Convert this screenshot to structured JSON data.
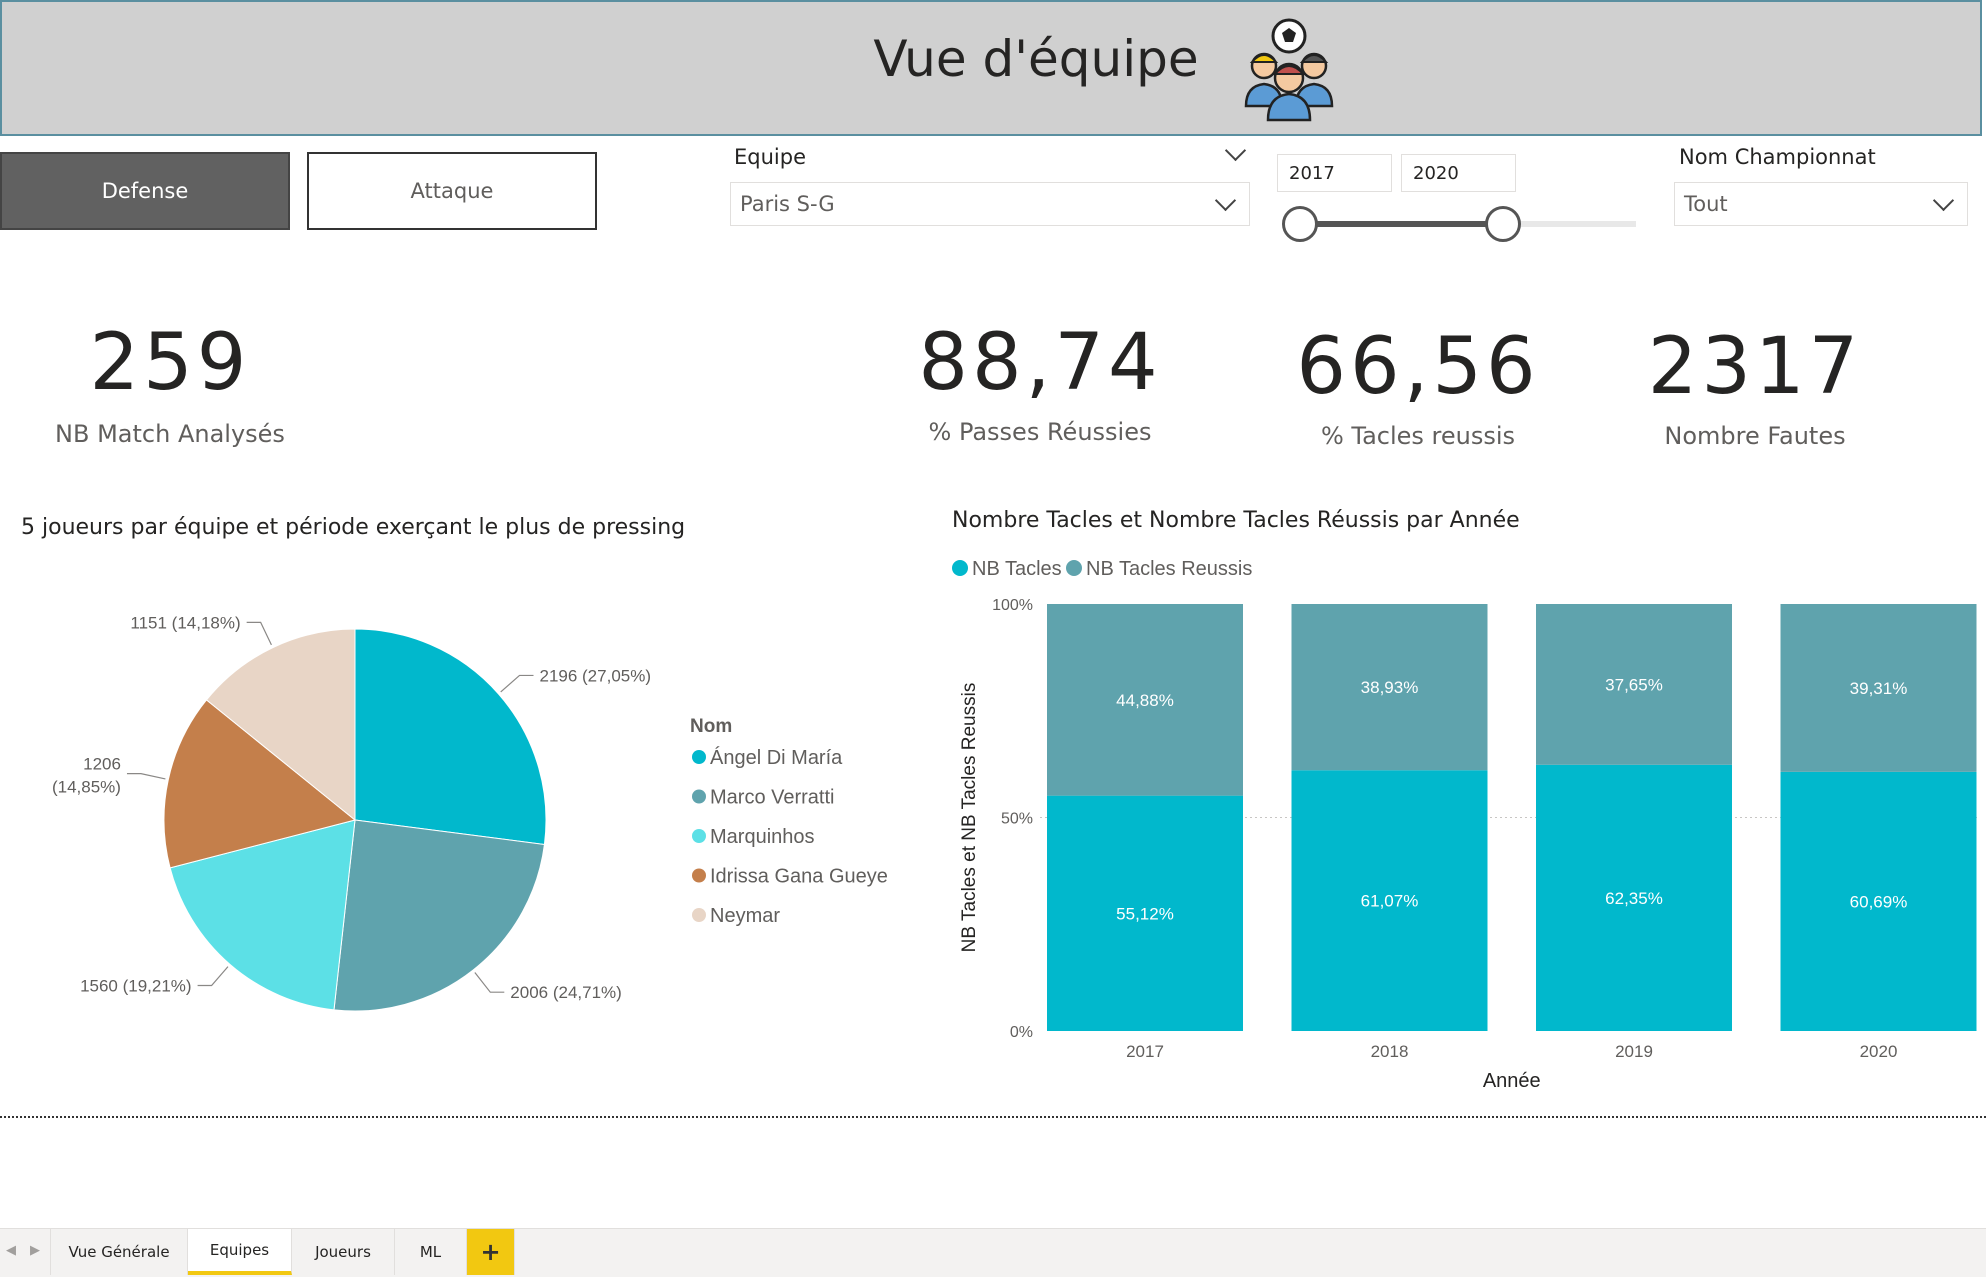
{
  "header": {
    "title": "Vue d'équipe",
    "icon": "team-players-icon"
  },
  "buttons": {
    "defense": "Defense",
    "attaque": "Attaque"
  },
  "slicers": {
    "equipe": {
      "label": "Equipe",
      "value": "Paris S-G"
    },
    "years": {
      "start": "2017",
      "end": "2020"
    },
    "championnat": {
      "label": "Nom Championnat",
      "value": "Tout"
    }
  },
  "kpis": {
    "matches": {
      "value": "259",
      "label": "NB Match Analysés"
    },
    "passes": {
      "value": "88,74",
      "label": "% Passes Réussies"
    },
    "tacles": {
      "value": "66,56",
      "label": "% Tacles reussis"
    },
    "fautes": {
      "value": "2317",
      "label": "Nombre Fautes"
    }
  },
  "chart_data": [
    {
      "type": "pie",
      "title": "5 joueurs par équipe et période exerçant le plus de pressing",
      "legend_title": "Nom",
      "legend_position": "right",
      "slices": [
        {
          "name": "Ángel Di María",
          "value": 2196,
          "label": "2196 (27,05%)",
          "color": "#01b8cc"
        },
        {
          "name": "Marco Verratti",
          "value": 2006,
          "label": "2006 (24,71%)",
          "color": "#5fa3ad"
        },
        {
          "name": "Marquinhos",
          "value": 1560,
          "label": "1560 (19,21%)",
          "color": "#5ce0e6"
        },
        {
          "name": "Idrissa Gana Gueye",
          "value": 1206,
          "label": "1206 (14,85%)",
          "color": "#c47f4b"
        },
        {
          "name": "Neymar",
          "value": 1151,
          "label": "1151 (14,18%)",
          "color": "#e8d5c6"
        }
      ]
    },
    {
      "type": "bar",
      "stacked": "100%",
      "title": "Nombre Tacles et Nombre Tacles Réussis par Année",
      "xlabel": "Année",
      "ylabel": "NB Tacles et NB Tacles Reussis",
      "yticks": [
        "0%",
        "50%",
        "100%"
      ],
      "legend_position": "top-left",
      "categories": [
        "2017",
        "2018",
        "2019",
        "2020"
      ],
      "series": [
        {
          "name": "NB Tacles",
          "color": "#01b8cc",
          "values": [
            55.12,
            61.07,
            62.35,
            60.69
          ],
          "labels": [
            "55,12%",
            "61,07%",
            "62,35%",
            "60,69%"
          ]
        },
        {
          "name": "NB Tacles Reussis",
          "color": "#5fa3ad",
          "values": [
            44.88,
            38.93,
            37.65,
            39.31
          ],
          "labels": [
            "44,88%",
            "38,93%",
            "37,65%",
            "39,31%"
          ]
        }
      ]
    }
  ],
  "tabs": [
    "Vue Générale",
    "Equipes",
    "Joueurs",
    "ML"
  ],
  "active_tab": "Equipes",
  "add_tab": "+"
}
